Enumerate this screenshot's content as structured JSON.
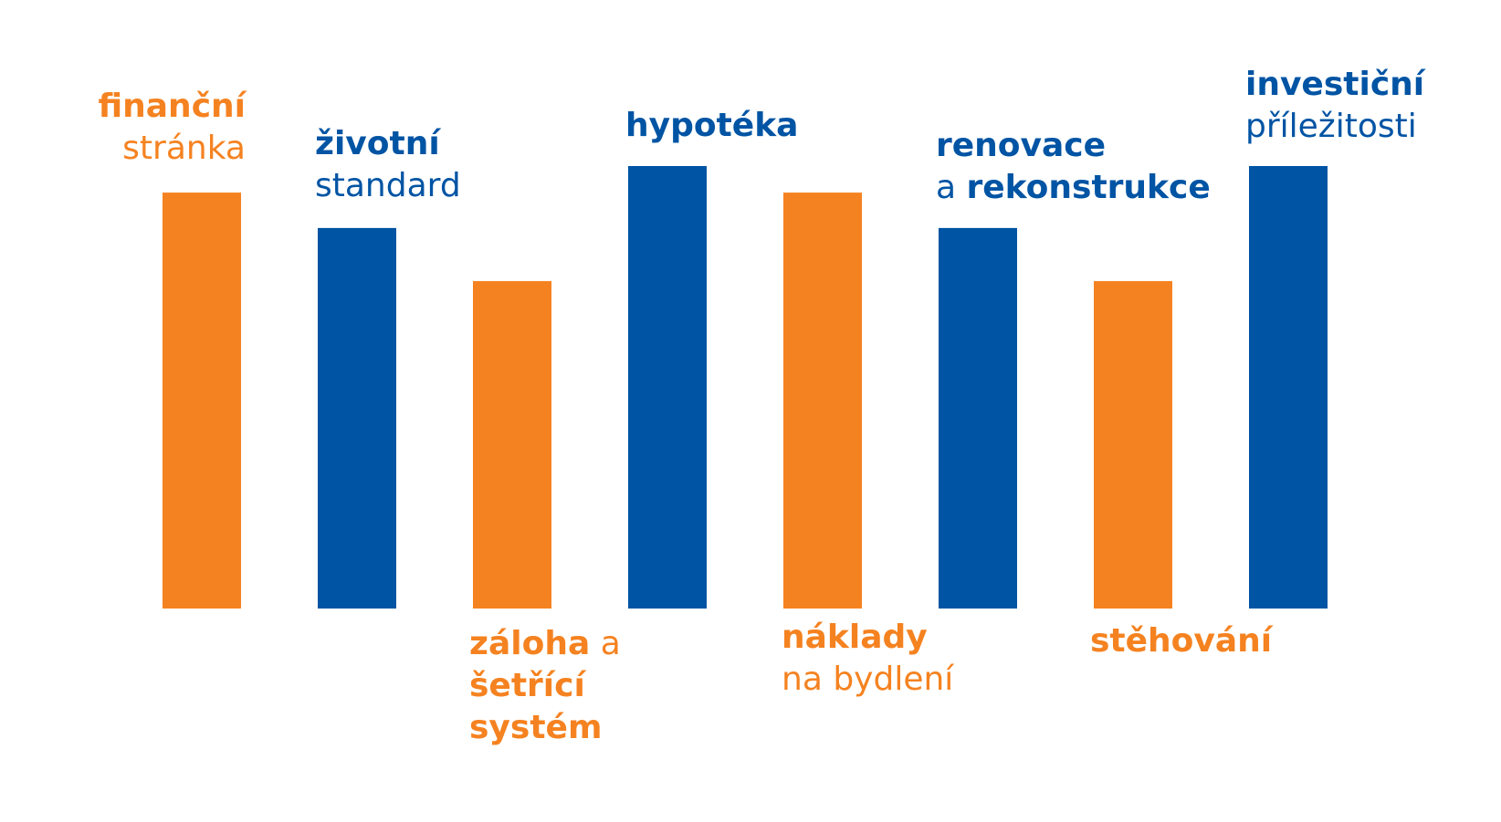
{
  "chart_data": {
    "type": "bar",
    "title": "",
    "xlabel": "",
    "ylabel": "",
    "ylim": [
      0,
      100
    ],
    "grid": false,
    "colors": {
      "orange": "#f58220",
      "blue": "#0054a4"
    },
    "categories": [
      "finanční stránka",
      "životní standard",
      "záloha a šetřící systém",
      "hypotéka",
      "náklady na bydlení",
      "renovace a rekonstrukce",
      "stěhování",
      "investiční příležitosti"
    ],
    "values": [
      94,
      86,
      74,
      100,
      94,
      86,
      74,
      100
    ],
    "bar_colors": [
      "orange",
      "blue",
      "orange",
      "blue",
      "orange",
      "blue",
      "orange",
      "blue"
    ],
    "labels": [
      {
        "parts": [
          {
            "text": "finanční",
            "bold": true
          },
          {
            "text": "stránka",
            "bold": false
          }
        ]
      },
      {
        "parts": [
          {
            "text": "životní",
            "bold": true
          },
          {
            "text": "standard",
            "bold": false
          }
        ]
      },
      {
        "parts": [
          {
            "text": "záloha",
            "bold": true
          },
          {
            "text": "a",
            "bold": false
          },
          {
            "text": "šetřící",
            "bold": true
          },
          {
            "text": "systém",
            "bold": true
          }
        ]
      },
      {
        "parts": [
          {
            "text": "hypotéka",
            "bold": true
          }
        ]
      },
      {
        "parts": [
          {
            "text": "náklady",
            "bold": true
          },
          {
            "text": "na bydlení",
            "bold": false
          }
        ]
      },
      {
        "parts": [
          {
            "text": "renovace",
            "bold": true
          },
          {
            "text": "a",
            "bold": false
          },
          {
            "text": "rekonstrukce",
            "bold": true
          }
        ]
      },
      {
        "parts": [
          {
            "text": "stěhování",
            "bold": true
          }
        ]
      },
      {
        "parts": [
          {
            "text": "investiční",
            "bold": true
          },
          {
            "text": "příležitosti",
            "bold": false
          }
        ]
      }
    ]
  }
}
